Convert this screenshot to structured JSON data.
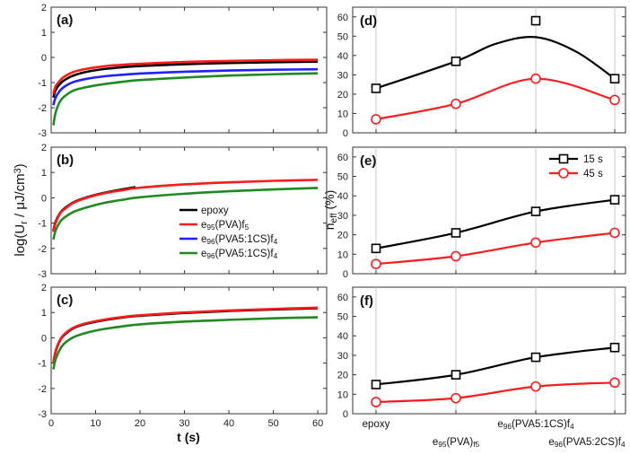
{
  "colors": {
    "epoxy": "#000000",
    "e95": "#ff1a1a",
    "e96_1": "#1f1fff",
    "e96_2": "#1f8a1f",
    "black": "#000000",
    "red": "#ff1a1a"
  },
  "chart_data": [
    {
      "type": "line",
      "panel": "(a)",
      "xlabel": "t (s)",
      "ylabel": "log(U_r / μJ/cm³)",
      "xlim": [
        0,
        62
      ],
      "ylim": [
        -3,
        2
      ],
      "xticks": [
        "0",
        "10",
        "20",
        "30",
        "40",
        "50",
        "60"
      ],
      "yticks": [
        "-3",
        "-2",
        "-1",
        "0",
        "1",
        "2"
      ],
      "series": [
        {
          "name": "epoxy",
          "color": "#000000",
          "x": [
            0.5,
            1,
            2,
            3,
            5,
            8,
            12,
            16,
            20,
            30,
            40,
            50,
            60
          ],
          "y": [
            -1.6,
            -1.3,
            -1.05,
            -0.9,
            -0.72,
            -0.57,
            -0.46,
            -0.39,
            -0.34,
            -0.27,
            -0.22,
            -0.19,
            -0.17
          ]
        },
        {
          "name": "e95(PVA)f5",
          "color": "#ff1a1a",
          "x": [
            0.5,
            1,
            2,
            3,
            5,
            8,
            12,
            16,
            20,
            30,
            40,
            50,
            60
          ],
          "y": [
            -1.45,
            -1.15,
            -0.92,
            -0.76,
            -0.58,
            -0.45,
            -0.35,
            -0.29,
            -0.25,
            -0.18,
            -0.14,
            -0.11,
            -0.09
          ]
        },
        {
          "name": "e96(PVA5:1CS)f4",
          "color": "#1f1fff",
          "x": [
            0.5,
            1,
            2,
            3,
            5,
            8,
            12,
            16,
            20,
            30,
            40,
            50,
            60
          ],
          "y": [
            -1.9,
            -1.6,
            -1.32,
            -1.16,
            -0.98,
            -0.85,
            -0.75,
            -0.69,
            -0.64,
            -0.57,
            -0.52,
            -0.49,
            -0.47
          ]
        },
        {
          "name": "e96(PVA5:1CS)f4",
          "color": "#1f8a1f",
          "x": [
            0.5,
            1,
            2,
            3,
            5,
            8,
            12,
            16,
            20,
            30,
            40,
            50,
            60
          ],
          "y": [
            -2.7,
            -2.2,
            -1.75,
            -1.55,
            -1.32,
            -1.18,
            -1.06,
            -0.97,
            -0.9,
            -0.8,
            -0.72,
            -0.67,
            -0.63
          ]
        }
      ]
    },
    {
      "type": "line",
      "panel": "(b)",
      "xlim": [
        0,
        62
      ],
      "ylim": [
        -3,
        2
      ],
      "xticks": [
        "0",
        "10",
        "20",
        "30",
        "40",
        "50",
        "60"
      ],
      "yticks": [
        "-3",
        "-2",
        "-1",
        "0",
        "1",
        "2"
      ],
      "series": [
        {
          "name": "epoxy",
          "color": "#000000",
          "x": [
            0.5,
            1,
            2,
            3,
            5,
            8,
            12,
            16,
            19
          ],
          "y": [
            -1.3,
            -0.95,
            -0.6,
            -0.42,
            -0.18,
            0.02,
            0.2,
            0.33,
            0.42
          ]
        },
        {
          "name": "e95(PVA)f5",
          "color": "#ff1a1a",
          "x": [
            0.5,
            1,
            2,
            3,
            5,
            8,
            12,
            16,
            20,
            30,
            40,
            50,
            60
          ],
          "y": [
            -1.35,
            -1.0,
            -0.62,
            -0.45,
            -0.2,
            0.0,
            0.18,
            0.3,
            0.4,
            0.53,
            0.61,
            0.67,
            0.71
          ]
        },
        {
          "name": "e96(PVA5:1CS)f4",
          "color": "#1f8a1f",
          "x": [
            0.5,
            1,
            2,
            3,
            5,
            8,
            12,
            16,
            20,
            30,
            40,
            50,
            60
          ],
          "y": [
            -1.65,
            -1.3,
            -0.95,
            -0.78,
            -0.56,
            -0.38,
            -0.2,
            -0.08,
            0.02,
            0.16,
            0.26,
            0.33,
            0.39
          ]
        }
      ]
    },
    {
      "type": "line",
      "panel": "(c)",
      "xlim": [
        0,
        62
      ],
      "ylim": [
        -3,
        2
      ],
      "xticks": [
        "0",
        "10",
        "20",
        "30",
        "40",
        "50",
        "60"
      ],
      "yticks": [
        "-3",
        "-2",
        "-1",
        "0",
        "1",
        "2"
      ],
      "series": [
        {
          "name": "epoxy",
          "color": "#000000",
          "x": [
            0.5,
            1,
            2,
            3,
            5,
            8,
            12,
            16,
            20,
            30,
            40,
            50,
            60
          ],
          "y": [
            -1.0,
            -0.55,
            -0.1,
            0.12,
            0.38,
            0.56,
            0.7,
            0.8,
            0.87,
            0.98,
            1.06,
            1.12,
            1.17
          ]
        },
        {
          "name": "e95(PVA)f5",
          "color": "#ff1a1a",
          "x": [
            0.5,
            1,
            2,
            3,
            5,
            8,
            12,
            16,
            20,
            30,
            40,
            50,
            60
          ],
          "y": [
            -1.0,
            -0.52,
            -0.08,
            0.15,
            0.4,
            0.58,
            0.72,
            0.82,
            0.89,
            1.0,
            1.08,
            1.14,
            1.19
          ]
        },
        {
          "name": "e96(PVA5:1CS)f4",
          "color": "#1f8a1f",
          "x": [
            0.5,
            1,
            2,
            3,
            5,
            8,
            12,
            16,
            20,
            30,
            40,
            50,
            60
          ],
          "y": [
            -1.25,
            -0.85,
            -0.45,
            -0.22,
            0.02,
            0.2,
            0.35,
            0.45,
            0.53,
            0.64,
            0.71,
            0.77,
            0.81
          ]
        }
      ]
    },
    {
      "type": "line",
      "panel": "(d)",
      "ylabel": "n_eff (%)",
      "categories": [
        "epoxy",
        "e95(PVA)f5",
        "e96(PVA5:1CS)f4",
        "e96(PVA5:2CS)f4"
      ],
      "ylim": [
        0,
        65
      ],
      "yticks": [
        "0",
        "10",
        "20",
        "30",
        "40",
        "50",
        "60"
      ],
      "series": [
        {
          "name": "15 s",
          "color": "#000000",
          "values": [
            23,
            37,
            58,
            28
          ]
        },
        {
          "name": "45 s",
          "color": "#ff1a1a",
          "values": [
            7,
            15,
            28,
            17
          ]
        }
      ]
    },
    {
      "type": "line",
      "panel": "(e)",
      "categories": [
        "epoxy",
        "e95(PVA)f5",
        "e96(PVA5:1CS)f4",
        "e96(PVA5:2CS)f4"
      ],
      "ylim": [
        0,
        65
      ],
      "yticks": [
        "0",
        "10",
        "20",
        "30",
        "40",
        "50",
        "60"
      ],
      "series": [
        {
          "name": "15 s",
          "color": "#000000",
          "values": [
            13,
            21,
            32,
            38
          ]
        },
        {
          "name": "45 s",
          "color": "#ff1a1a",
          "values": [
            5,
            9,
            16,
            21
          ]
        }
      ]
    },
    {
      "type": "line",
      "panel": "(f)",
      "categories": [
        "epoxy",
        "e95(PVA)f5",
        "e96(PVA5:1CS)f4",
        "e96(PVA5:2CS)f4"
      ],
      "ylim": [
        0,
        65
      ],
      "yticks": [
        "0",
        "10",
        "20",
        "30",
        "40",
        "50",
        "60"
      ],
      "series": [
        {
          "name": "15 s",
          "color": "#000000",
          "values": [
            15,
            20,
            29,
            34
          ]
        },
        {
          "name": "45 s",
          "color": "#ff1a1a",
          "values": [
            6,
            8,
            14,
            16
          ]
        }
      ]
    }
  ],
  "legend_left": [
    {
      "base": "epoxy",
      "sub": "",
      "tail": "",
      "sub2": "",
      "color": "#000000"
    },
    {
      "base": "e",
      "sub": "95",
      "tail": "(PVA)f",
      "sub2": "5",
      "color": "#ff1a1a"
    },
    {
      "base": "e",
      "sub": "96",
      "tail": "(PVA5:1CS)f",
      "sub2": "4",
      "color": "#1f1fff"
    },
    {
      "base": "e",
      "sub": "96",
      "tail": "(PVA5:1CS)f",
      "sub2": "4",
      "color": "#1f8a1f"
    }
  ],
  "legend_right": [
    {
      "label": "15 s",
      "color": "#000000"
    },
    {
      "label": "45 s",
      "color": "#ff1a1a"
    }
  ],
  "xcat_labels": [
    {
      "base": "epoxy",
      "sub": "",
      "tail": ""
    },
    {
      "base": "e",
      "sub": "95",
      "tail": "(PVA)",
      "sub2": "f5"
    },
    {
      "base": "e",
      "sub": "96",
      "tail": "(PVA5:1CS)f",
      "sub2": "4"
    },
    {
      "base": "e",
      "sub": "96",
      "tail": "(PVA5:2CS)f",
      "sub2": "4"
    }
  ],
  "left_ylabel": {
    "a": "log(U",
    "b": "r",
    "c": " / μJ/cm",
    "d": "3",
    "e": ")"
  },
  "right_ylabel": {
    "a": "n",
    "b": "eff",
    "c": " (%)"
  },
  "left_xlabel": "t (s)"
}
